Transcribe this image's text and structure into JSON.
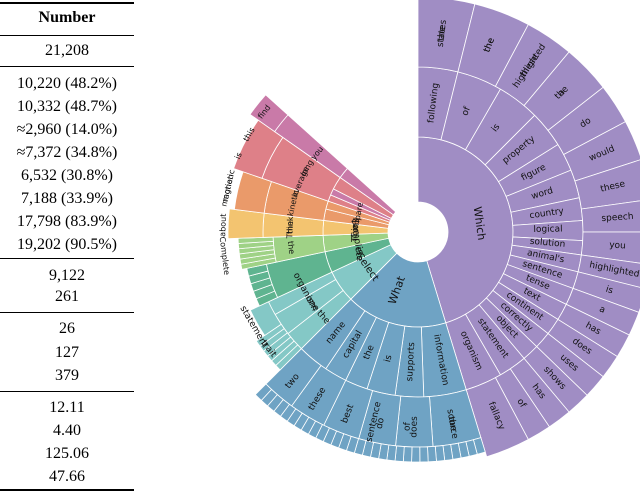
{
  "table": {
    "header": "Number",
    "rows": [
      "21,208",
      "10,220 (48.2%)",
      "10,332 (48.7%)",
      "≈2,960 (14.0%)",
      "≈7,372 (34.8%)",
      "6,532 (30.8%)",
      "7,188 (33.9%)",
      "17,798 (83.9%)",
      "19,202 (90.5%)",
      "9,122",
      "261",
      "26",
      "127",
      "379",
      "12.11",
      "4.40",
      "125.06",
      "47.66"
    ]
  },
  "chart_data": {
    "type": "sunburst",
    "title": "",
    "center_hole": true,
    "colors": {
      "which": "#a08dc4",
      "what": "#6fa3c4",
      "select": "#84c8c6",
      "is": "#5fb490",
      "complete": "#9fd286",
      "think": "#f3c470",
      "compare": "#ea9a6a",
      "find": "#de8088",
      "describe": "#c97aa8",
      "edge": "#ffffff"
    },
    "first_words": [
      {
        "word": "Which",
        "share": 0.45
      },
      {
        "word": "What",
        "share": 0.2
      },
      {
        "word": "Select",
        "share": 0.1
      },
      {
        "word": "is",
        "share": 0.05
      },
      {
        "word": "Complete",
        "share": 0.05
      },
      {
        "word": "Think",
        "share": 0.04
      },
      {
        "word": "Compare",
        "share": 0.03
      },
      {
        "word": "How",
        "share": 0.02
      },
      {
        "word": "Hint",
        "share": 0.01
      },
      {
        "word": "Would",
        "share": 0.01
      },
      {
        "word": "find",
        "share": 0.02
      },
      {
        "word": "describe",
        "share": 0.02
      }
    ],
    "labels": {
      "which_ring2": [
        "following",
        "of",
        "is",
        "property",
        "figure",
        "word",
        "country",
        "logical",
        "solution",
        "animal's",
        "sentence",
        "tense",
        "text",
        "continent",
        "correctly",
        "object",
        "statement",
        "organism"
      ],
      "which_ring3": [
        "states",
        "the",
        "these",
        "a",
        "do",
        "would",
        "these",
        "speech",
        "you",
        "highlighted",
        "is",
        "a",
        "has",
        "does",
        "uses",
        "shows",
        "has",
        "of",
        "fallacy",
        "the",
        "the",
        "highlighted",
        "the"
      ],
      "what": [
        "information",
        "supports",
        "is",
        "the",
        "capital",
        "name",
        "source",
        "does",
        "do",
        "best",
        "these",
        "two",
        "the",
        "of",
        "sentence"
      ],
      "select": [
        "the",
        "one",
        "organism",
        "in",
        "following",
        "statement",
        "trait"
      ],
      "left": [
        "the",
        "Complete",
        "the",
        "about",
        "Think",
        "magnetic",
        "kinetic",
        "motion",
        "average",
        "is",
        "long",
        "this",
        "you",
        "find",
        "passage",
        "the",
        "describe",
        "a",
        "of",
        "Compare",
        "How",
        "Hint",
        "Would",
        "is",
        "the"
      ]
    }
  }
}
